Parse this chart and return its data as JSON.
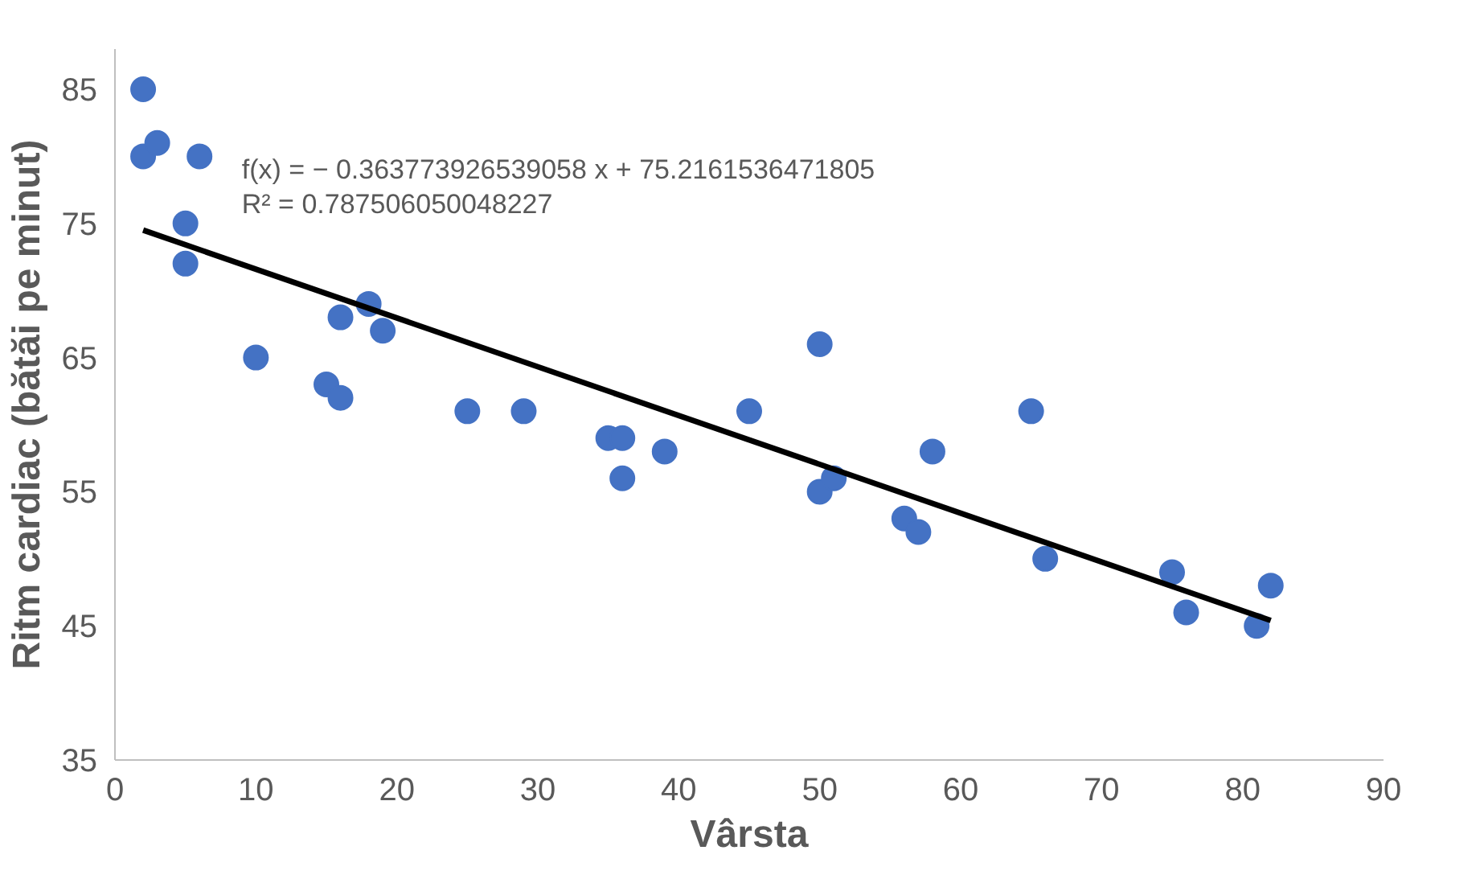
{
  "chart_data": {
    "type": "scatter",
    "xlabel": "Vârsta",
    "ylabel": "Ritm cardiac (bătăi pe minut)",
    "xlim": [
      0,
      90
    ],
    "ylim": [
      35,
      88
    ],
    "xticks": [
      0,
      10,
      20,
      30,
      40,
      50,
      60,
      70,
      80,
      90
    ],
    "yticks": [
      35,
      45,
      55,
      65,
      75,
      85
    ],
    "grid": false,
    "series": [
      {
        "color": "#4472c4",
        "marker": "circle",
        "x": [
          2,
          2,
          3,
          6,
          5,
          5,
          10,
          15,
          16,
          16,
          18,
          19,
          25,
          29,
          35,
          36,
          36,
          39,
          45,
          50,
          50,
          51,
          56,
          57,
          58,
          65,
          66,
          75,
          76,
          81,
          82
        ],
        "values": [
          85,
          80,
          81,
          80,
          75,
          72,
          65,
          63,
          62,
          68,
          69,
          67,
          61,
          61,
          59,
          59,
          56,
          58,
          61,
          66,
          55,
          56,
          53,
          52,
          58,
          61,
          50,
          49,
          46,
          45,
          48
        ]
      },
      {
        "type": "line",
        "color": "#000000",
        "x": [
          2,
          82
        ],
        "values": [
          74.5,
          45.4
        ],
        "line_style": "solid"
      }
    ],
    "annotations": [
      "f(x) = − 0.363773926539058 x + 75.2161536471805",
      "R² = 0.787506050048227"
    ]
  }
}
